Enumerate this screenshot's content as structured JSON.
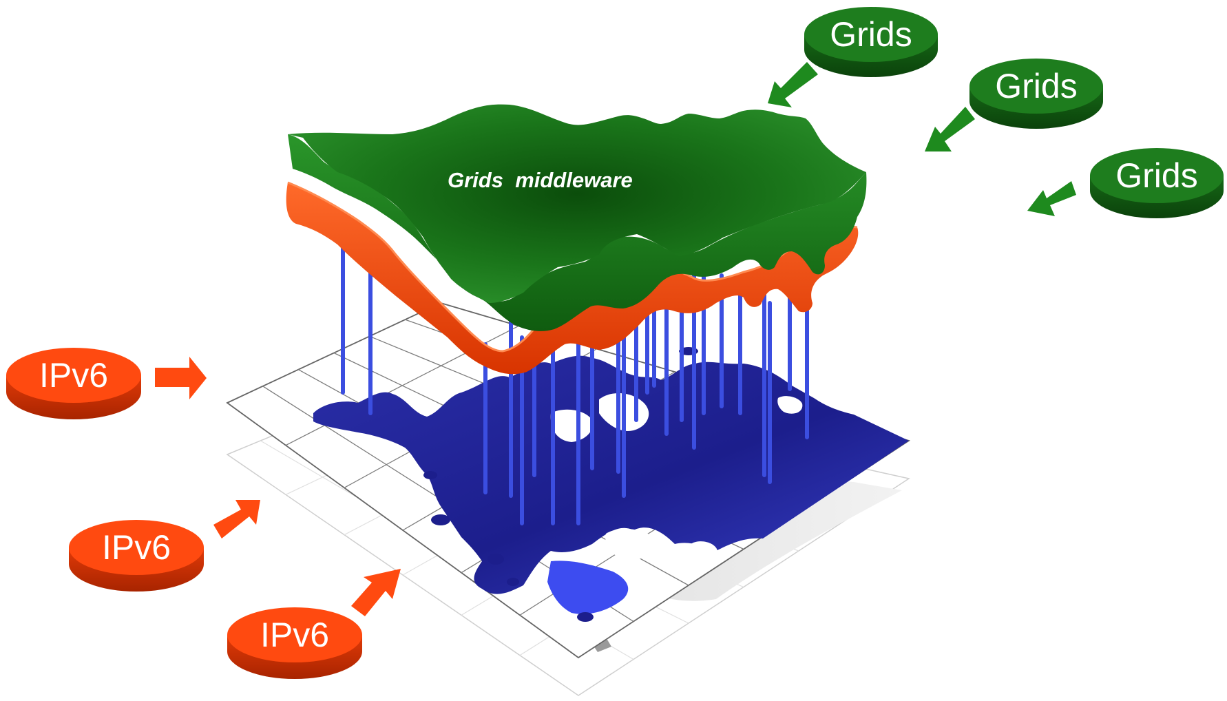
{
  "grid_layer": {
    "label": "Grids  middleware",
    "color": "#1e7d1e"
  },
  "ipv6_layer": {
    "color": "#ff4a10"
  },
  "map_layer": {
    "land_color": "#1c1e8c",
    "pillar_color": "#3b4ee0"
  },
  "grids_discs": [
    {
      "label": "Grids"
    },
    {
      "label": "Grids"
    },
    {
      "label": "Grids"
    }
  ],
  "ipv6_discs": [
    {
      "label": "IPv6"
    },
    {
      "label": "IPv6"
    },
    {
      "label": "IPv6"
    }
  ],
  "colors": {
    "grids_disc": "#1e7d1e",
    "ipv6_disc": "#ff4a10",
    "grid_arrow": "#1e8a1e",
    "ipv6_arrow": "#ff4a10"
  }
}
